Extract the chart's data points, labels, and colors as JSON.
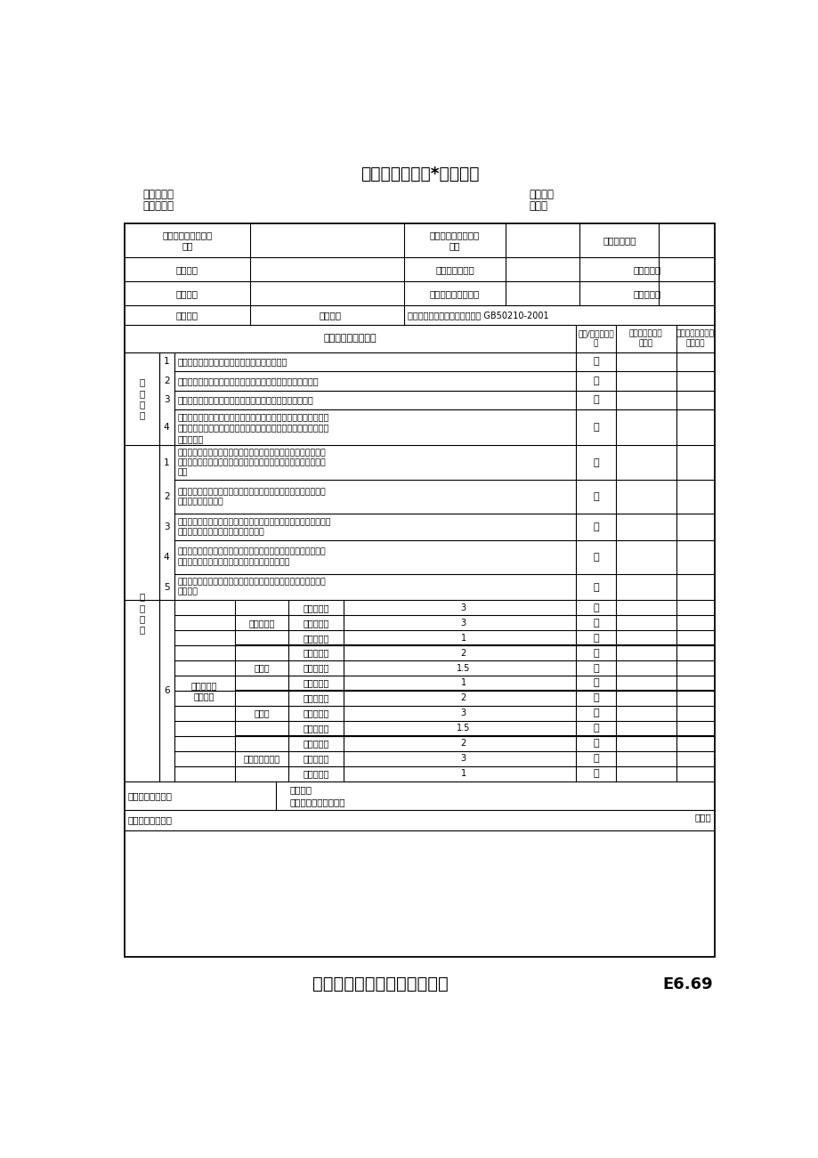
{
  "main_title": "福州市轨道交通*号线工程",
  "footer_title": "暗龙骨吊顶工程质量验收规范",
  "footer_code": "E6.69",
  "header_left": [
    "承包单位：",
    "监理单位："
  ],
  "header_right": [
    "合同号：",
    "编号："
  ],
  "top_row_labels": [
    "单位（子单位）工程\n名称",
    "分部（子部分）工程\n名称",
    "分项工程名称"
  ],
  "row2_labels": [
    "施工单位",
    "项目技术负责人",
    "检验批容量"
  ],
  "row3_labels": [
    "分包单位",
    "分包单位项目负责人",
    "检验批部位"
  ],
  "row4_labels": [
    "施工依据",
    "验收依据",
    "建筑装饰装修工程质量验收规范 GB50210-2001"
  ],
  "col_headers": [
    "质量验收规范的规定",
    "最小/实际抽样数\n量",
    "施工单位检查评\n定记录",
    "监理（建设）单位\n验收记录"
  ],
  "main_ctrl_label": "主\n控\n项\n目",
  "main_ctrl_items": [
    [
      "1",
      "吊顶标高、尺寸、起拱和造型应符合设计要求。"
    ],
    [
      "2",
      "饰面材料的材质、品种、规格、图案和颜色应符合设计要求。"
    ],
    [
      "3",
      "暗龙骨吊顶工程的吊杆、龙骨和饰面材料的安装必须牢固。"
    ],
    [
      "4",
      "吊杆、龙骨的材质、规格、安装间距及连接方式应符合设计要求。\n金属吊杆、龙骨应经过表面防腐处理；木吊杆、龙骨应进行防腐、\n防火处理。"
    ]
  ],
  "accept_label": "验\n收\n项\n目",
  "accept_items": [
    [
      "1",
      "石杆板的接缝应按其施工工艺标准进行板缝防裂处理。安装双层石\n膏板时，面层板与基层板的接缝应错开，并不得在同一根龙骨上接\n缝。"
    ],
    [
      "2",
      "饰面材料表面应洁净、色泽一致，不得有翘曲、裂缝及缺损。压条\n应平直、宽窄一致。"
    ],
    [
      "3",
      "饰面板上的灯具、烟感器、喷淋头、风口茸子等设备的位置应合理、\n美观，与饰面板的交接应吻合、严密。"
    ],
    [
      "4",
      "金属吊杆、龙骨的接缝应均匀一致，角缝应吻合，表面应平整，无\n翘曲、锤木质吊杆、龙骨应顺直，无劈裂、变形。"
    ],
    [
      "5",
      "吊顶内填充吸声材料的品种和铺设厚度应符合设计要求，并应有防\n散落措施"
    ]
  ],
  "item6_label": "6",
  "item6_install": "暗龙骨吊顶\n工程安装",
  "materials": [
    "纸面石膏板",
    "金属板",
    "矿棉板",
    "木板塑料板格栅"
  ],
  "measures": [
    "表面平整度",
    "接缝直线度",
    "接缝高低差"
  ],
  "values": [
    [
      3,
      3,
      1
    ],
    [
      2,
      1.5,
      1
    ],
    [
      2,
      3,
      1.5
    ],
    [
      2,
      3,
      1
    ]
  ],
  "result_label": "施工单位检查结果",
  "result_staff": "施工员：",
  "result_qc": "项目专业质量检查员：",
  "date_label": "年月日",
  "conclusion_label": "监理单位验收结论",
  "slash": "／"
}
